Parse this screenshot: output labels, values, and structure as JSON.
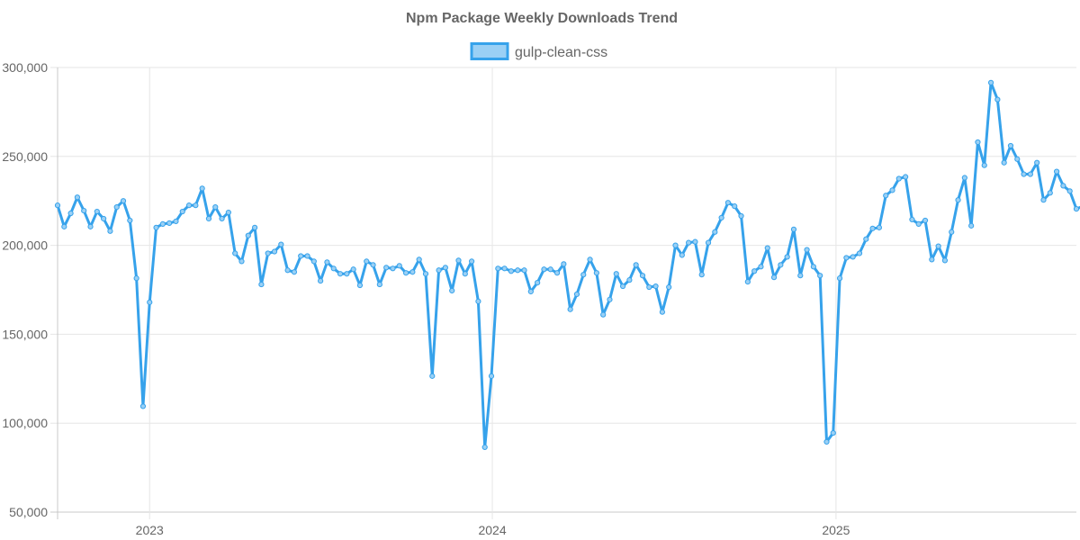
{
  "chart_data": {
    "type": "line",
    "title": "Npm Package Weekly Downloads Trend",
    "xlabel": "",
    "ylabel": "",
    "x_ticks": [
      "2023",
      "2024",
      "2025"
    ],
    "x_tick_dates": [
      "2023-01-01",
      "2024-01-01",
      "2025-01-01"
    ],
    "y_ticks": [
      "50,000",
      "100,000",
      "150,000",
      "200,000",
      "250,000",
      "300,000"
    ],
    "y_tick_values": [
      50000,
      100000,
      150000,
      200000,
      250000,
      300000
    ],
    "ylim": [
      50000,
      300000
    ],
    "xlim": [
      "2022-09-25",
      "2025-09-14"
    ],
    "grid": true,
    "legend_position": "top",
    "series": [
      {
        "name": "gulp-clean-css",
        "color": "#36a2eb",
        "fill": "#9ad0f5",
        "start_date": "2022-09-25",
        "step_days": 7,
        "values": [
          222500,
          210500,
          218000,
          227000,
          219500,
          210500,
          219000,
          215000,
          208000,
          221500,
          225000,
          214000,
          181500,
          109500,
          168000,
          210000,
          212000,
          212500,
          213500,
          219000,
          222500,
          222500,
          232000,
          215000,
          221500,
          215000,
          218500,
          195500,
          191000,
          205500,
          210000,
          178000,
          195500,
          196500,
          200500,
          186000,
          185000,
          194000,
          194000,
          191000,
          180000,
          190500,
          187000,
          184000,
          184000,
          186500,
          177500,
          191000,
          189000,
          178000,
          187500,
          187000,
          188500,
          184500,
          185000,
          192000,
          184000,
          126500,
          186000,
          187500,
          174500,
          191500,
          184000,
          191000,
          168500,
          86500,
          126500,
          187000,
          187000,
          185500,
          186000,
          186000,
          174000,
          179000,
          186500,
          186500,
          184500,
          189500,
          164000,
          172500,
          183500,
          192000,
          184500,
          161000,
          169500,
          184000,
          177000,
          180500,
          189000,
          183000,
          176500,
          177000,
          162500,
          176500,
          200000,
          194500,
          201500,
          202000,
          183500,
          201500,
          207500,
          215500,
          224000,
          222000,
          216500,
          179500,
          185500,
          188000,
          198500,
          182000,
          189000,
          193500,
          209000,
          183000,
          197500,
          188000,
          183000,
          89500,
          94500,
          181500,
          193000,
          193500,
          195500,
          203500,
          209500,
          210000,
          228000,
          231000,
          237500,
          238500,
          214500,
          212000,
          214000,
          192000,
          199500,
          191500,
          207500,
          225500,
          238000,
          211000,
          258000,
          245000,
          291500,
          282000,
          246500,
          256000,
          248500,
          240000,
          240000,
          246500,
          225500,
          229500,
          241500,
          233500,
          230500,
          220500,
          222000
        ]
      }
    ]
  }
}
